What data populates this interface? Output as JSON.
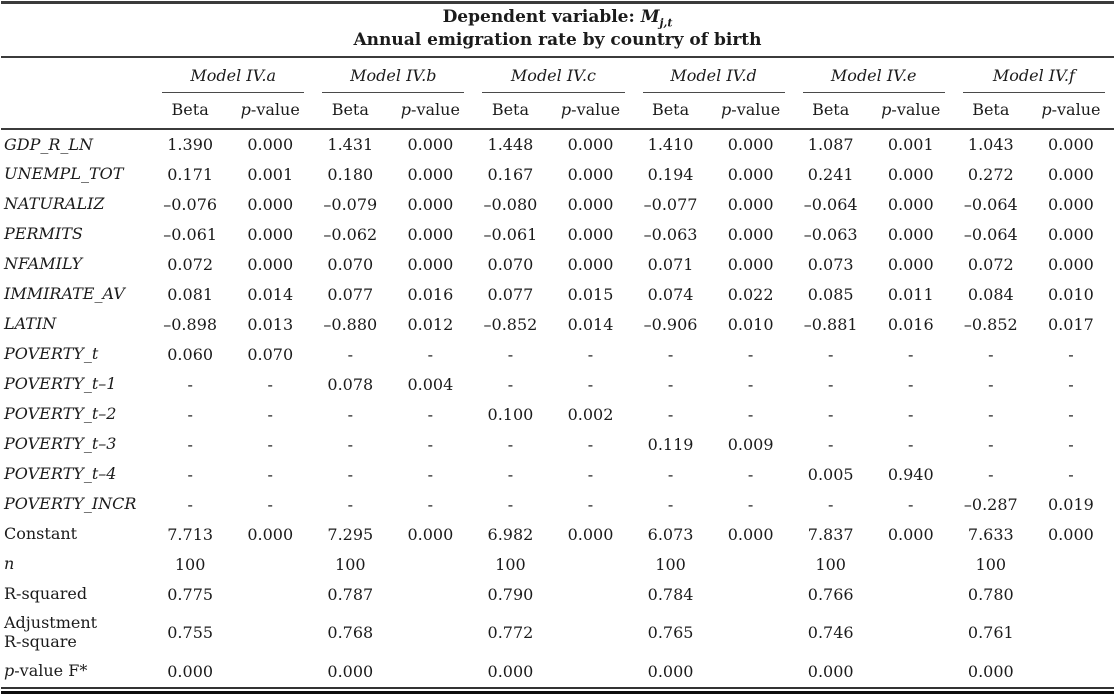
{
  "header": {
    "title_prefix": "Dependent variable: ",
    "title_var": "M",
    "title_var_sub": "j,t",
    "subtitle": "Annual emigration rate by country of birth"
  },
  "columns": {
    "models": [
      "Model IV.a",
      "Model IV.b",
      "Model IV.c",
      "Model IV.d",
      "Model IV.e",
      "Model IV.f"
    ],
    "sub_beta": "Beta",
    "sub_pvalue_italic": "p",
    "sub_pvalue_roman": "-value"
  },
  "rows": [
    {
      "label": [
        {
          "text": "GDP_R_LN",
          "italic": true
        }
      ],
      "cells": [
        "1.390",
        "0.000",
        "1.431",
        "0.000",
        "1.448",
        "0.000",
        "1.410",
        "0.000",
        "1.087",
        "0.001",
        "1.043",
        "0.000"
      ]
    },
    {
      "label": [
        {
          "text": "UNEMPL_TOT",
          "italic": true
        }
      ],
      "cells": [
        "0.171",
        "0.001",
        "0.180",
        "0.000",
        "0.167",
        "0.000",
        "0.194",
        "0.000",
        "0.241",
        "0.000",
        "0.272",
        "0.000"
      ]
    },
    {
      "label": [
        {
          "text": "NATURALIZ",
          "italic": true
        }
      ],
      "cells": [
        "–0.076",
        "0.000",
        "–0.079",
        "0.000",
        "–0.080",
        "0.000",
        "–0.077",
        "0.000",
        "–0.064",
        "0.000",
        "–0.064",
        "0.000"
      ]
    },
    {
      "label": [
        {
          "text": "PERMITS",
          "italic": true
        }
      ],
      "cells": [
        "–0.061",
        "0.000",
        "–0.062",
        "0.000",
        "–0.061",
        "0.000",
        "–0.063",
        "0.000",
        "–0.063",
        "0.000",
        "–0.064",
        "0.000"
      ]
    },
    {
      "label": [
        {
          "text": "NFAMILY",
          "italic": true
        }
      ],
      "cells": [
        "0.072",
        "0.000",
        "0.070",
        "0.000",
        "0.070",
        "0.000",
        "0.071",
        "0.000",
        "0.073",
        "0.000",
        "0.072",
        "0.000"
      ]
    },
    {
      "label": [
        {
          "text": "IMMIRATE_AV",
          "italic": true
        }
      ],
      "cells": [
        "0.081",
        "0.014",
        "0.077",
        "0.016",
        "0.077",
        "0.015",
        "0.074",
        "0.022",
        "0.085",
        "0.011",
        "0.084",
        "0.010"
      ]
    },
    {
      "label": [
        {
          "text": "LATIN",
          "italic": true
        }
      ],
      "cells": [
        "–0.898",
        "0.013",
        "–0.880",
        "0.012",
        "–0.852",
        "0.014",
        "–0.906",
        "0.010",
        "–0.881",
        "0.016",
        "–0.852",
        "0.017"
      ]
    },
    {
      "label": [
        {
          "text": "POVERTY_t",
          "italic": true
        }
      ],
      "cells": [
        "0.060",
        "0.070",
        "-",
        "-",
        "-",
        "-",
        "-",
        "-",
        "-",
        "-",
        "-",
        "-"
      ]
    },
    {
      "label": [
        {
          "text": "POVERTY_t–1",
          "italic": true
        }
      ],
      "cells": [
        "-",
        "-",
        "0.078",
        "0.004",
        "-",
        "-",
        "-",
        "-",
        "-",
        "-",
        "-",
        "-"
      ]
    },
    {
      "label": [
        {
          "text": "POVERTY_t–2",
          "italic": true
        }
      ],
      "cells": [
        "-",
        "-",
        "-",
        "-",
        "0.100",
        "0.002",
        "-",
        "-",
        "-",
        "-",
        "-",
        "-"
      ]
    },
    {
      "label": [
        {
          "text": "POVERTY_t–3",
          "italic": true
        }
      ],
      "cells": [
        "-",
        "-",
        "-",
        "-",
        "-",
        "-",
        "0.119",
        "0.009",
        "-",
        "-",
        "-",
        "-"
      ]
    },
    {
      "label": [
        {
          "text": "POVERTY_t–4",
          "italic": true
        }
      ],
      "cells": [
        "-",
        "-",
        "-",
        "-",
        "-",
        "-",
        "-",
        "-",
        "0.005",
        "0.940",
        "-",
        "-"
      ]
    },
    {
      "label": [
        {
          "text": "POVERTY_INCR",
          "italic": true
        }
      ],
      "cells": [
        "-",
        "-",
        "-",
        "-",
        "-",
        "-",
        "-",
        "-",
        "-",
        "-",
        "–0.287",
        "0.019"
      ]
    },
    {
      "label": [
        {
          "text": "Constant",
          "italic": false
        }
      ],
      "cells": [
        "7.713",
        "0.000",
        "7.295",
        "0.000",
        "6.982",
        "0.000",
        "6.073",
        "0.000",
        "7.837",
        "0.000",
        "7.633",
        "0.000"
      ]
    },
    {
      "label": [
        {
          "text": "n",
          "italic": true
        }
      ],
      "cells": [
        "100",
        "",
        "100",
        "",
        "100",
        "",
        "100",
        "",
        "100",
        "",
        "100",
        ""
      ]
    },
    {
      "label": [
        {
          "text": "R-squared",
          "italic": false
        }
      ],
      "cells": [
        "0.775",
        "",
        "0.787",
        "",
        "0.790",
        "",
        "0.784",
        "",
        "0.766",
        "",
        "0.780",
        ""
      ]
    },
    {
      "label": [
        {
          "text": "Adjustment",
          "italic": false
        },
        {
          "br": true
        },
        {
          "text": "R-square",
          "italic": false
        }
      ],
      "tall": true,
      "cells": [
        "0.755",
        "",
        "0.768",
        "",
        "0.772",
        "",
        "0.765",
        "",
        "0.746",
        "",
        "0.761",
        ""
      ]
    },
    {
      "label": [
        {
          "text": "p",
          "italic": true
        },
        {
          "text": "-value F*",
          "italic": false
        }
      ],
      "cells": [
        "0.000",
        "",
        "0.000",
        "",
        "0.000",
        "",
        "0.000",
        "",
        "0.000",
        "",
        "0.000",
        ""
      ]
    }
  ]
}
